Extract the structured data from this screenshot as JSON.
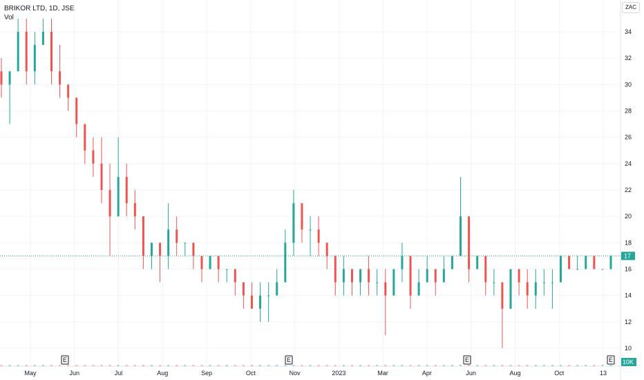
{
  "header": {
    "title": "BRIKOR LTD, 1D, JSE",
    "volume_label": "Vol",
    "currency_button": "ZAC"
  },
  "colors": {
    "up": "#26a69a",
    "down": "#ef5350",
    "grid": "#f0f3fa",
    "axis_border": "#e0e3eb",
    "last_price_line": "#26a69a"
  },
  "axis": {
    "volume_label": "10K",
    "earnings_marker": "E"
  },
  "chart_data": {
    "type": "ohlc",
    "title": "BRIKOR LTD, 1D, JSE",
    "xlabel": "",
    "ylabel": "",
    "ylim": [
      9,
      36
    ],
    "y_ticks": [
      10,
      12,
      14,
      16,
      18,
      20,
      22,
      24,
      26,
      28,
      30,
      32,
      34
    ],
    "x_ticks": [
      "May",
      "Jun",
      "Jul",
      "Aug",
      "Sep",
      "Oct",
      "Nov",
      "2023",
      "Mar",
      "Apr",
      "Jun",
      "Aug",
      "Oct",
      "13"
    ],
    "last_price": 17,
    "earnings_events": [
      "Jun",
      "Nov",
      "Jun",
      "13"
    ],
    "series_shape": [
      [
        31,
        32,
        29,
        30
      ],
      [
        30,
        31,
        27,
        31
      ],
      [
        31,
        35,
        31,
        34
      ],
      [
        34,
        35,
        30,
        31
      ],
      [
        31,
        34,
        30,
        33
      ],
      [
        33,
        35,
        33,
        34
      ],
      [
        34,
        35,
        30,
        31
      ],
      [
        31,
        33,
        29,
        30
      ],
      [
        30,
        30,
        28,
        29
      ],
      [
        29,
        29,
        26,
        27
      ],
      [
        27,
        27,
        24,
        25
      ],
      [
        25,
        26,
        23,
        24
      ],
      [
        24,
        26,
        21,
        22
      ],
      [
        22,
        24,
        17,
        20
      ],
      [
        20,
        26,
        20,
        23
      ],
      [
        23,
        24,
        20,
        21
      ],
      [
        21,
        22,
        19,
        20
      ],
      [
        20,
        20,
        16,
        17
      ],
      [
        17,
        18,
        16,
        18
      ],
      [
        18,
        18,
        15,
        17
      ],
      [
        17,
        21,
        16,
        19
      ],
      [
        19,
        20,
        17,
        18
      ],
      [
        18,
        18,
        17,
        18
      ],
      [
        18,
        18,
        16,
        17
      ],
      [
        17,
        17,
        15,
        16
      ],
      [
        16,
        17,
        16,
        17
      ],
      [
        17,
        17,
        15,
        16
      ],
      [
        16,
        16,
        15,
        16
      ],
      [
        16,
        16,
        14,
        15
      ],
      [
        15,
        15,
        13,
        14
      ],
      [
        14,
        15,
        13,
        13
      ],
      [
        13,
        15,
        12,
        14
      ],
      [
        14,
        15,
        12,
        14
      ],
      [
        14,
        16,
        14,
        15
      ],
      [
        15,
        19,
        15,
        18
      ],
      [
        18,
        22,
        17,
        21
      ],
      [
        21,
        21,
        18,
        19
      ],
      [
        19,
        20,
        17,
        19
      ],
      [
        19,
        20,
        17,
        18
      ],
      [
        18,
        18,
        16,
        17
      ],
      [
        17,
        17,
        14,
        15
      ],
      [
        15,
        17,
        14,
        16
      ],
      [
        16,
        16,
        14,
        15
      ],
      [
        15,
        16,
        14,
        16
      ],
      [
        16,
        17,
        14,
        15
      ],
      [
        15,
        16,
        14,
        15
      ],
      [
        15,
        16,
        11,
        14
      ],
      [
        14,
        16,
        14,
        16
      ],
      [
        16,
        18,
        15,
        17
      ],
      [
        17,
        17,
        13,
        14
      ],
      [
        14,
        16,
        14,
        15
      ],
      [
        15,
        17,
        15,
        16
      ],
      [
        16,
        16,
        14,
        15
      ],
      [
        15,
        17,
        15,
        16
      ],
      [
        16,
        17,
        16,
        17
      ],
      [
        17,
        23,
        17,
        20
      ],
      [
        20,
        20,
        15,
        16
      ],
      [
        16,
        17,
        16,
        17
      ],
      [
        17,
        17,
        14,
        15
      ],
      [
        15,
        16,
        14,
        15
      ],
      [
        15,
        15,
        10,
        13
      ],
      [
        13,
        16,
        13,
        16
      ],
      [
        16,
        16,
        14,
        15
      ],
      [
        15,
        16,
        13,
        14
      ],
      [
        14,
        16,
        13,
        15
      ],
      [
        15,
        16,
        14,
        15
      ],
      [
        15,
        16,
        13,
        15
      ],
      [
        15,
        17,
        15,
        17
      ],
      [
        17,
        17,
        16,
        16
      ],
      [
        16,
        17,
        16,
        16
      ],
      [
        16,
        17,
        16,
        17
      ],
      [
        17,
        17,
        16,
        16
      ],
      [
        16,
        16,
        16,
        16
      ],
      [
        16,
        17,
        16,
        17
      ]
    ]
  }
}
